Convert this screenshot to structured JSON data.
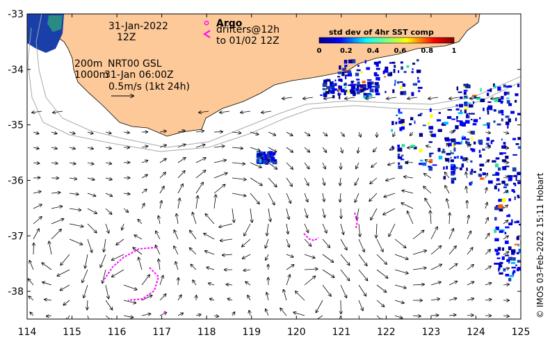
{
  "map": {
    "date_label": "31-Jan-2022",
    "time_label": "12Z",
    "model_label": "NRT00 GSL",
    "model_time": "31-Jan 06:00Z",
    "isobath_200": "200m",
    "isobath_1000": "1000m",
    "scale_label": "0.5m/s (1kt 24h)",
    "argo_label": "Argo",
    "drifters_label": "drifters@12h",
    "drifters_to": "to 01/02 12Z",
    "credit": "© IMOS 03-Feb-2022 15:11 Hobart",
    "colors": {
      "land": "#fdc998",
      "drifter": "#ff00ff",
      "coast": "#000000",
      "isobath": "#a8a8a8"
    }
  },
  "colorbar": {
    "title": "std dev of 4hr SST comp",
    "ticks": [
      "0",
      "0.2",
      "0.4",
      "0.6",
      "0.8",
      "1"
    ],
    "colormap": "jet"
  },
  "axes": {
    "x_ticks": [
      "114",
      "115",
      "116",
      "117",
      "118",
      "119",
      "120",
      "121",
      "122",
      "123",
      "124",
      "125"
    ],
    "y_ticks": [
      "-33",
      "-34",
      "-35",
      "-36",
      "-37",
      "-38"
    ],
    "xlim": [
      114,
      125
    ],
    "ylim": [
      -38.5,
      -33
    ]
  }
}
